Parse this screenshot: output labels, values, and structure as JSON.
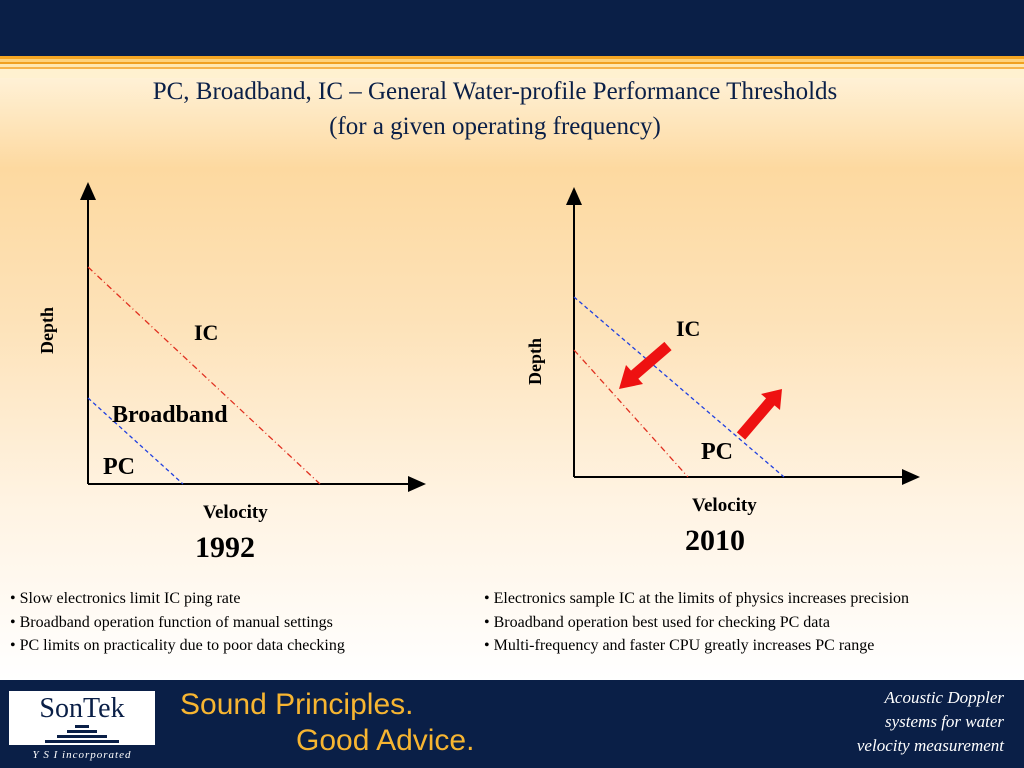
{
  "slide": {
    "title_line1": "PC, Broadband, IC – General Water-profile Performance Thresholds",
    "title_line2": "(for a given operating frequency)"
  },
  "left_diagram": {
    "y_axis_label": "Depth",
    "x_axis_label": "Velocity",
    "year": "1992",
    "region_labels": [
      "IC",
      "Broadband",
      "PC"
    ],
    "colors": {
      "ic_line": "#e03020",
      "pc_line": "#2040e0"
    }
  },
  "right_diagram": {
    "y_axis_label": "Depth",
    "x_axis_label": "Velocity",
    "year": "2010",
    "region_labels": [
      "IC",
      "PC"
    ],
    "colors": {
      "ic_line": "#2040e0",
      "pc_line": "#e03020",
      "arrows": "#ee1111"
    }
  },
  "bullets_left": [
    "• Slow electronics limit IC ping rate",
    "• Broadband operation function of manual settings",
    "• PC limits on practicality due to poor data checking"
  ],
  "bullets_right": [
    "• Electronics sample IC at the limits of physics increases precision",
    "• Broadband operation best used for checking PC data",
    "• Multi-frequency and faster CPU greatly increases PC range"
  ],
  "footer": {
    "logo_name": "SonTek",
    "logo_sub": "Y S I  incorporated",
    "slogan_line1": "Sound Principles.",
    "slogan_line2": "Good Advice.",
    "tagline_line1": "Acoustic Doppler",
    "tagline_line2": "systems for water",
    "tagline_line3": "velocity measurement"
  }
}
